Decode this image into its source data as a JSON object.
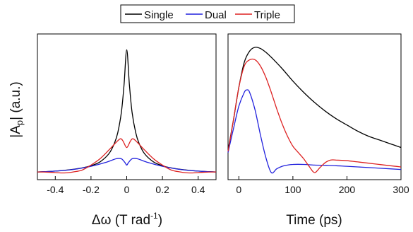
{
  "legend": [
    {
      "label": "Single",
      "color": "#000000"
    },
    {
      "label": "Dual",
      "color": "#2222dd"
    },
    {
      "label": "Triple",
      "color": "#dd2222"
    }
  ],
  "shared_ylabel": "|A",
  "shared_ylabel_sub": "p",
  "shared_ylabel_tail": "| (a.u.)",
  "chart_data": [
    {
      "type": "line",
      "panel": "left",
      "xlabel": "Δω (T rad",
      "xlabel_sup": "-1",
      "xlabel_tail": ")",
      "xlim": [
        -0.5,
        0.5
      ],
      "ylim": [
        0,
        1.05
      ],
      "xticks": [
        -0.4,
        -0.2,
        0,
        0.2,
        0.4
      ],
      "xtick_labels": [
        "-0.4",
        "-0.2",
        "0",
        "0.2",
        "0.4"
      ],
      "y_ticks_shown": false,
      "series": [
        {
          "name": "Single",
          "color": "#000000",
          "x": [
            -0.5,
            -0.45,
            -0.4,
            -0.35,
            -0.3,
            -0.25,
            -0.2,
            -0.15,
            -0.1,
            -0.07,
            -0.05,
            -0.03,
            -0.015,
            0,
            0.015,
            0.03,
            0.05,
            0.07,
            0.1,
            0.15,
            0.2,
            0.25,
            0.3,
            0.35,
            0.4,
            0.45,
            0.5
          ],
          "y": [
            0.005,
            0.008,
            0.012,
            0.018,
            0.026,
            0.037,
            0.055,
            0.085,
            0.15,
            0.23,
            0.32,
            0.48,
            0.7,
            0.98,
            0.7,
            0.48,
            0.32,
            0.23,
            0.15,
            0.085,
            0.055,
            0.037,
            0.026,
            0.018,
            0.012,
            0.008,
            0.005
          ]
        },
        {
          "name": "Dual",
          "color": "#2222dd",
          "x": [
            -0.5,
            -0.4,
            -0.3,
            -0.2,
            -0.12,
            -0.06,
            -0.03,
            -0.01,
            0,
            0.01,
            0.03,
            0.06,
            0.12,
            0.2,
            0.3,
            0.4,
            0.5
          ],
          "y": [
            0.005,
            0.012,
            0.025,
            0.05,
            0.08,
            0.11,
            0.11,
            0.08,
            0.06,
            0.08,
            0.11,
            0.11,
            0.08,
            0.05,
            0.025,
            0.012,
            0.005
          ]
        },
        {
          "name": "Triple",
          "color": "#dd2222",
          "x": [
            -0.5,
            -0.45,
            -0.4,
            -0.35,
            -0.3,
            -0.25,
            -0.2,
            -0.15,
            -0.1,
            -0.06,
            -0.035,
            -0.02,
            0,
            0.02,
            0.035,
            0.06,
            0.1,
            0.15,
            0.2,
            0.25,
            0.3,
            0.35,
            0.4,
            0.45,
            0.5
          ],
          "y": [
            0.005,
            0.004,
            0.0,
            -0.003,
            0.005,
            0.02,
            0.06,
            0.11,
            0.18,
            0.24,
            0.27,
            0.25,
            0.2,
            0.25,
            0.27,
            0.24,
            0.18,
            0.11,
            0.06,
            0.02,
            0.005,
            -0.003,
            0.0,
            0.004,
            0.005
          ]
        }
      ]
    },
    {
      "type": "line",
      "panel": "right",
      "xlabel": "Time (ps)",
      "xlim": [
        -20,
        300
      ],
      "ylim": [
        0,
        1.05
      ],
      "xticks": [
        0,
        100,
        200,
        300
      ],
      "xtick_labels": [
        "0",
        "100",
        "200",
        "300"
      ],
      "y_ticks_shown": false,
      "series": [
        {
          "name": "Single",
          "color": "#000000",
          "x": [
            -20,
            -10,
            0,
            10,
            20,
            30,
            40,
            50,
            60,
            80,
            100,
            120,
            140,
            160,
            180,
            200,
            220,
            240,
            260,
            280,
            300
          ],
          "y": [
            0.18,
            0.42,
            0.68,
            0.88,
            0.97,
            1.0,
            0.99,
            0.96,
            0.92,
            0.83,
            0.73,
            0.64,
            0.56,
            0.49,
            0.43,
            0.38,
            0.33,
            0.29,
            0.26,
            0.23,
            0.2
          ]
        },
        {
          "name": "Dual",
          "color": "#2222dd",
          "x": [
            -20,
            -10,
            0,
            10,
            15,
            20,
            30,
            40,
            50,
            60,
            70,
            80,
            90,
            100,
            120,
            140,
            160,
            180,
            200,
            240,
            280,
            300
          ],
          "y": [
            0.16,
            0.35,
            0.53,
            0.64,
            0.66,
            0.64,
            0.5,
            0.3,
            0.12,
            0.0,
            0.03,
            0.05,
            0.06,
            0.065,
            0.065,
            0.06,
            0.058,
            0.055,
            0.05,
            0.04,
            0.03,
            0.025
          ]
        },
        {
          "name": "Triple",
          "color": "#dd2222",
          "x": [
            -20,
            -10,
            0,
            10,
            20,
            30,
            40,
            50,
            60,
            70,
            80,
            90,
            100,
            110,
            120,
            130,
            140,
            150,
            160,
            170,
            180,
            200,
            220,
            240,
            260,
            280,
            300
          ],
          "y": [
            0.17,
            0.42,
            0.68,
            0.85,
            0.9,
            0.9,
            0.85,
            0.76,
            0.64,
            0.51,
            0.39,
            0.29,
            0.21,
            0.16,
            0.11,
            0.05,
            0.0,
            0.04,
            0.08,
            0.1,
            0.1,
            0.095,
            0.085,
            0.075,
            0.065,
            0.055,
            0.045
          ]
        }
      ]
    }
  ]
}
